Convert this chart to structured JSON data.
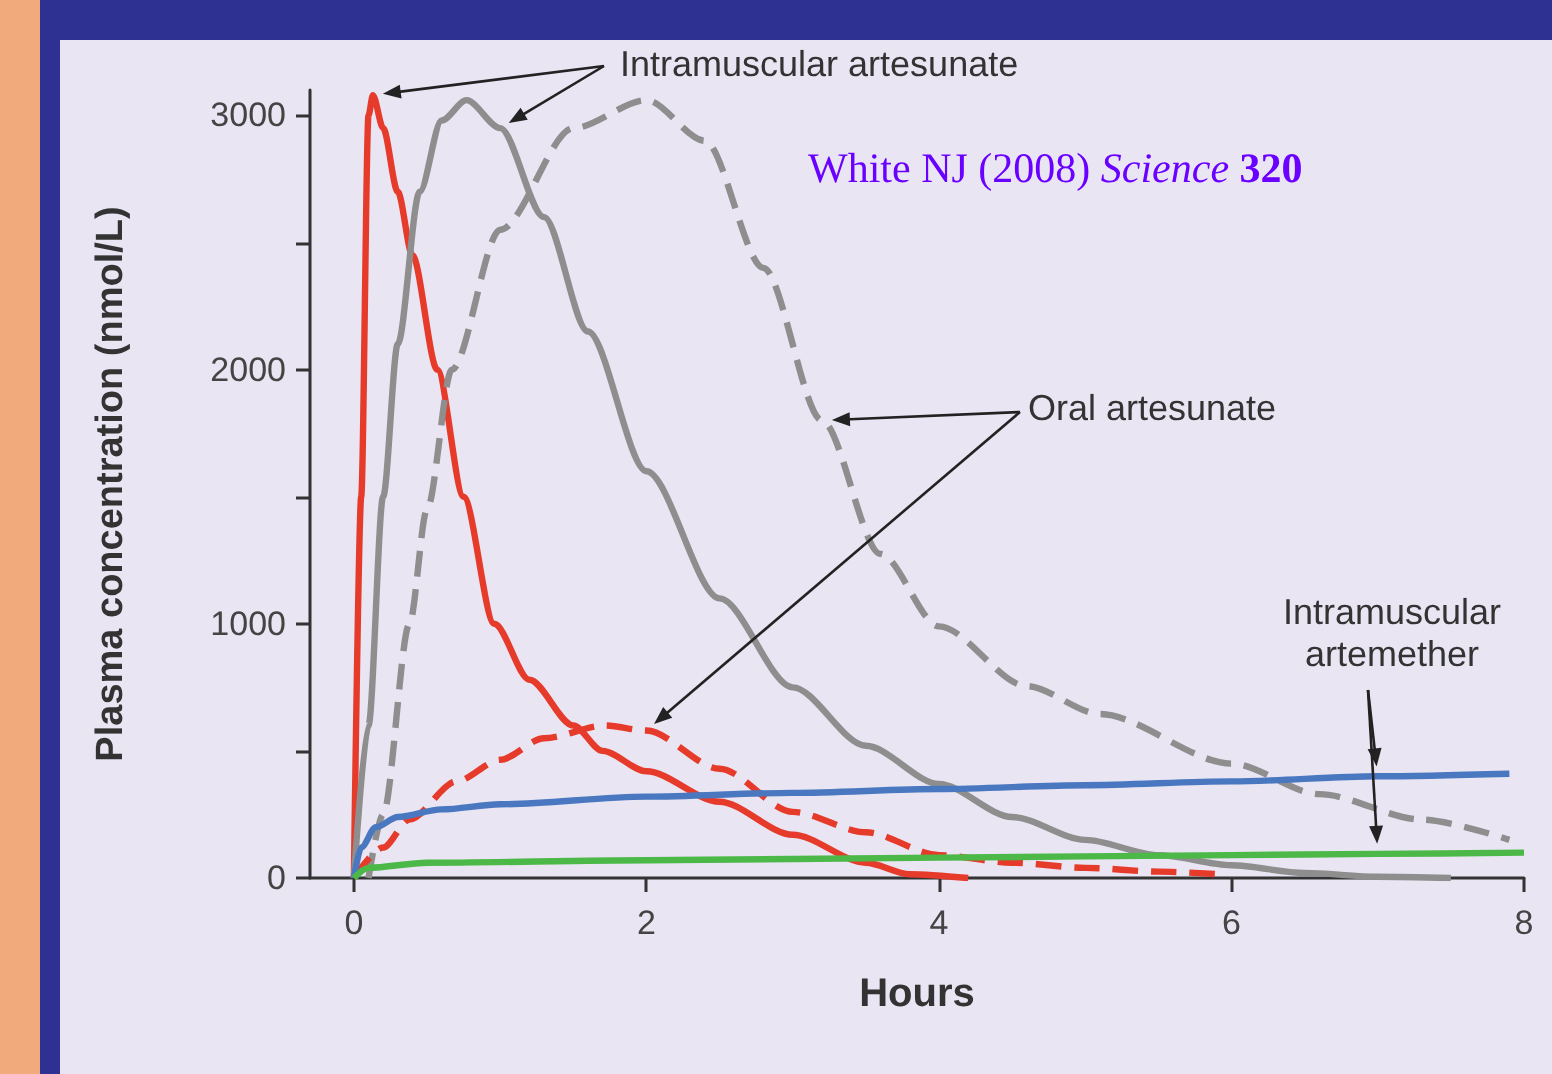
{
  "chart_data": {
    "type": "line",
    "xlabel": "Hours",
    "ylabel": "Plasma concentration (nmol/L)",
    "xlim": [
      -0.3,
      8
    ],
    "xticks": [
      0,
      2,
      4,
      6,
      8
    ],
    "ylim": [
      0,
      3100
    ],
    "yticks": [
      0,
      {
        "value": 500,
        "label": null
      },
      1000,
      {
        "value": 1500,
        "label": null
      },
      2000,
      {
        "value": 2500,
        "label": null
      },
      3000
    ],
    "grid": false,
    "marker": "none",
    "series": [
      {
        "color": "#e63b2b",
        "line_style": "solid",
        "x": [
          0,
          0.05,
          0.1,
          0.13,
          0.2,
          0.3,
          0.4,
          0.57,
          0.75,
          0.96,
          1.2,
          1.5,
          1.7,
          2,
          2.5,
          3,
          3.5,
          3.8,
          4.2
        ],
        "values": [
          0,
          1500,
          3000,
          3080,
          2950,
          2700,
          2450,
          2000,
          1500,
          1000,
          780,
          600,
          500,
          420,
          300,
          170,
          60,
          15,
          0
        ]
      },
      {
        "color": "#8e8e8e",
        "line_style": "solid",
        "x": [
          0,
          0.1,
          0.2,
          0.3,
          0.45,
          0.6,
          0.77,
          1,
          1.3,
          1.6,
          2,
          2.5,
          3,
          3.5,
          4,
          4.5,
          5,
          5.5,
          6,
          6.5,
          7,
          7.5
        ],
        "values": [
          0,
          600,
          1500,
          2100,
          2700,
          2980,
          3060,
          2950,
          2600,
          2150,
          1600,
          1100,
          750,
          520,
          370,
          240,
          150,
          90,
          50,
          20,
          5,
          0
        ]
      },
      {
        "color": "#8e8e8e",
        "line_style": "dashed",
        "x": [
          0.1,
          0.2,
          0.38,
          0.5,
          0.67,
          1,
          1.5,
          2,
          2.4,
          2.8,
          3.2,
          3.6,
          4,
          4.6,
          5.1,
          6,
          6.6,
          7.3,
          7.9
        ],
        "values": [
          0,
          250,
          1000,
          1450,
          2000,
          2550,
          2950,
          3060,
          2900,
          2400,
          1800,
          1275,
          990,
          755,
          645,
          450,
          330,
          230,
          150
        ]
      },
      {
        "color": "#e63b2b",
        "line_style": "dashed",
        "x": [
          0,
          0.2,
          0.38,
          0.7,
          1,
          1.3,
          1.72,
          2,
          2.5,
          3,
          3.5,
          4,
          4.5,
          5,
          5.5,
          5.9
        ],
        "values": [
          0,
          120,
          230,
          380,
          465,
          550,
          600,
          580,
          430,
          260,
          180,
          90,
          60,
          40,
          25,
          15
        ]
      },
      {
        "color": "#4a78c0",
        "line_style": "solid",
        "x": [
          0,
          0.05,
          0.15,
          0.3,
          0.6,
          1,
          2,
          3,
          4,
          5,
          6,
          7,
          7.9
        ],
        "values": [
          0,
          120,
          200,
          240,
          270,
          290,
          320,
          335,
          350,
          365,
          380,
          400,
          410
        ]
      },
      {
        "color": "#4cb848",
        "line_style": "solid",
        "x": [
          0,
          0.1,
          0.5,
          2,
          4,
          6,
          7,
          8
        ],
        "values": [
          0,
          40,
          60,
          70,
          80,
          90,
          95,
          100
        ]
      }
    ],
    "annotations": [
      "Intramuscular artesunate",
      "Oral artesunate",
      "Intramuscular artemether",
      "White NJ (2008) Science 320"
    ]
  }
}
